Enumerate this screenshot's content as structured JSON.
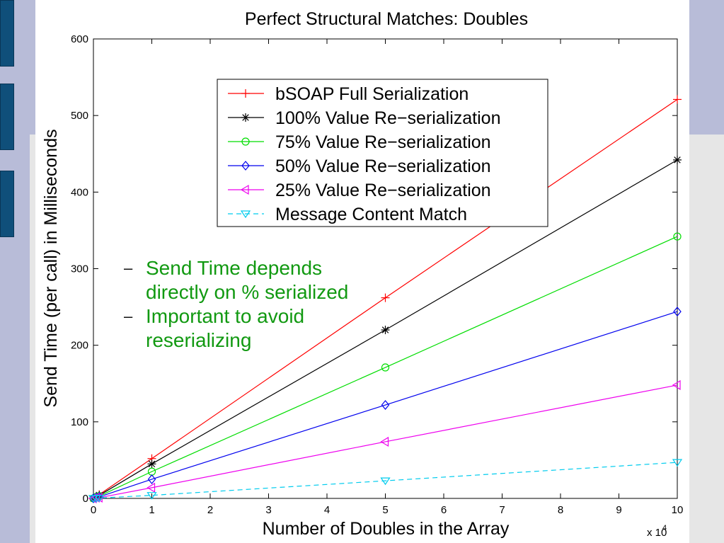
{
  "chart_data": {
    "type": "line",
    "title": "Perfect Structural Matches: Doubles",
    "xlabel": "Number of Doubles in the Array",
    "ylabel": "Send Time (per call) in Milliseconds",
    "x_exponent_label": "x 10",
    "x_exponent": "4",
    "xlim": [
      0,
      100000
    ],
    "ylim": [
      0,
      600
    ],
    "xticks": [
      0,
      1,
      2,
      3,
      4,
      5,
      6,
      7,
      8,
      9,
      10
    ],
    "yticks": [
      0,
      100,
      200,
      300,
      400,
      500,
      600
    ],
    "x": [
      0,
      500,
      1000,
      10000,
      50000,
      100000
    ],
    "legend_position": "top-center",
    "grid": false,
    "series": [
      {
        "name": "bSOAP Full Serialization",
        "color": "#ff0000",
        "marker": "plus",
        "dash": false,
        "values": [
          0,
          3,
          5,
          52,
          262,
          521
        ]
      },
      {
        "name": "100% Value Re−serialization",
        "color": "#000000",
        "marker": "star",
        "dash": false,
        "values": [
          0,
          2,
          4,
          45,
          220,
          442
        ]
      },
      {
        "name": "75% Value Re−serialization",
        "color": "#00dd00",
        "marker": "circle",
        "dash": false,
        "values": [
          0,
          2,
          3,
          35,
          171,
          342
        ]
      },
      {
        "name": "50% Value Re−serialization",
        "color": "#0000ee",
        "marker": "diamond",
        "dash": false,
        "values": [
          0,
          1,
          2,
          25,
          122,
          244
        ]
      },
      {
        "name": "25% Value Re−serialization",
        "color": "#ee00ee",
        "marker": "triangle-left",
        "dash": false,
        "values": [
          0,
          1,
          1,
          14,
          74,
          148
        ]
      },
      {
        "name": "Message Content Match",
        "color": "#00ccee",
        "marker": "triangle-down",
        "dash": true,
        "values": [
          0,
          0,
          0.5,
          4,
          23,
          47
        ]
      }
    ]
  },
  "notes": [
    {
      "dash": "–",
      "text": "Send Time depends directly on % serialized"
    },
    {
      "dash": "–",
      "text": "Important to avoid reserializing"
    }
  ]
}
